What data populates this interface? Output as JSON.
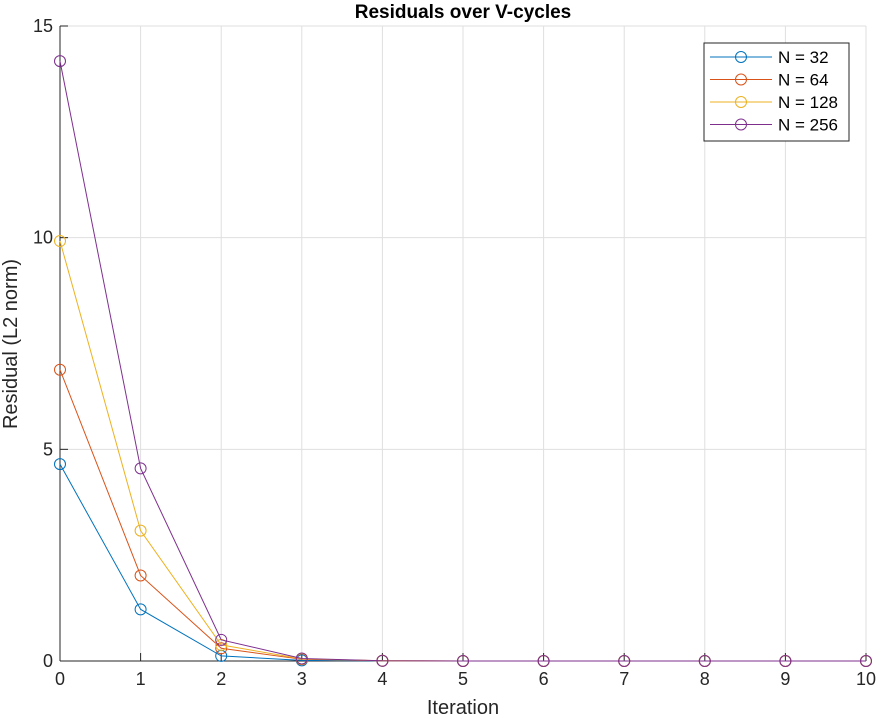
{
  "chart_data": {
    "type": "line",
    "title": "Residuals over V-cycles",
    "xlabel": "Iteration",
    "ylabel": "Residual (L2 norm)",
    "xlim": [
      0,
      10
    ],
    "ylim": [
      0,
      15
    ],
    "xticks": [
      "0",
      "1",
      "2",
      "3",
      "4",
      "5",
      "6",
      "7",
      "8",
      "9",
      "10"
    ],
    "yticks": [
      "0",
      "5",
      "10",
      "15"
    ],
    "grid": true,
    "marker": "circle",
    "legend_position": "top-right",
    "x": [
      0,
      1,
      2,
      3,
      4,
      5,
      6,
      7,
      8,
      9,
      10
    ],
    "series": [
      {
        "name": "N = 32",
        "color": "#0072BD",
        "values": [
          4.65,
          1.22,
          0.12,
          0.015,
          0.0015,
          0.0002,
          0,
          0,
          0,
          0,
          0
        ]
      },
      {
        "name": "N = 64",
        "color": "#D95319",
        "values": [
          6.88,
          2.02,
          0.3,
          0.04,
          0.005,
          0.0007,
          0.0001,
          0,
          0,
          0,
          0
        ]
      },
      {
        "name": "N = 128",
        "color": "#EDB120",
        "values": [
          9.92,
          3.08,
          0.38,
          0.05,
          0.006,
          0.0008,
          0.0001,
          0,
          0,
          0,
          0
        ]
      },
      {
        "name": "N = 256",
        "color": "#7E2F8E",
        "values": [
          14.17,
          4.55,
          0.5,
          0.06,
          0.007,
          0.0009,
          0.0001,
          0,
          0,
          0,
          0
        ]
      }
    ]
  }
}
